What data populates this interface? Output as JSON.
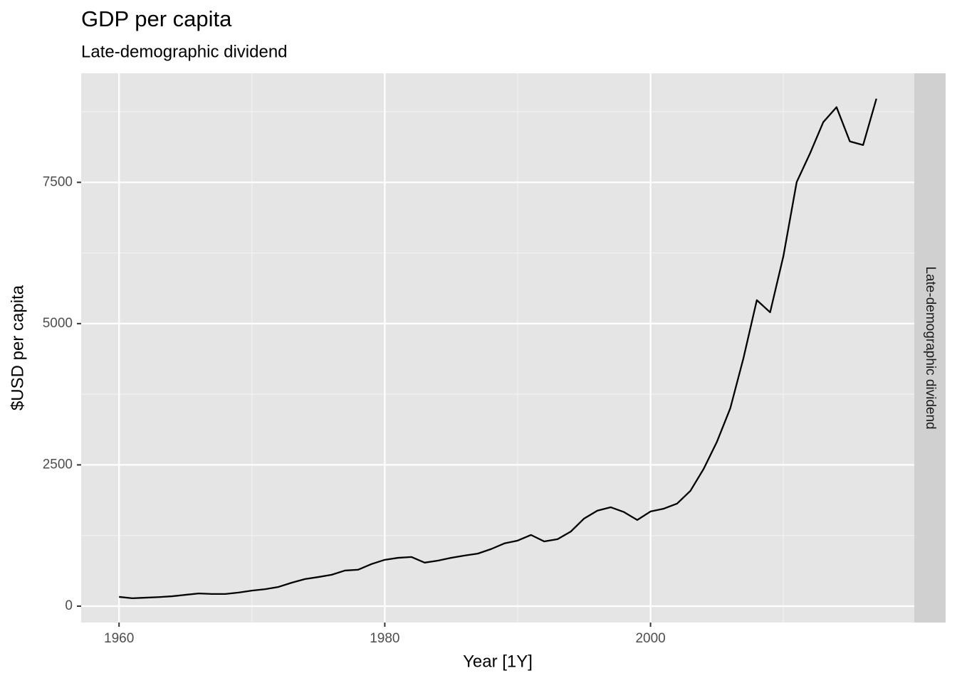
{
  "chart_data": {
    "type": "line",
    "title": "GDP per capita",
    "subtitle": "Late-demographic dividend",
    "facet": "Late-demographic dividend",
    "x_label": "Year [1Y]",
    "y_label": "$USD per capita",
    "x": [
      1960,
      1961,
      1962,
      1963,
      1964,
      1965,
      1966,
      1967,
      1968,
      1969,
      1970,
      1971,
      1972,
      1973,
      1974,
      1975,
      1976,
      1977,
      1978,
      1979,
      1980,
      1981,
      1982,
      1983,
      1984,
      1985,
      1986,
      1987,
      1988,
      1989,
      1990,
      1991,
      1992,
      1993,
      1994,
      1995,
      1996,
      1997,
      1998,
      1999,
      2000,
      2001,
      2002,
      2003,
      2004,
      2005,
      2006,
      2007,
      2008,
      2009,
      2010,
      2011,
      2012,
      2013,
      2014,
      2015,
      2016,
      2017
    ],
    "series": [
      {
        "color": "#000000",
        "values": [
          164,
          140,
          150,
          160,
          175,
          200,
          225,
          215,
          215,
          240,
          275,
          300,
          340,
          415,
          480,
          515,
          555,
          630,
          645,
          745,
          820,
          855,
          870,
          770,
          805,
          855,
          895,
          930,
          1010,
          1110,
          1160,
          1260,
          1145,
          1185,
          1320,
          1550,
          1690,
          1750,
          1665,
          1525,
          1675,
          1725,
          1815,
          2040,
          2430,
          2910,
          3500,
          4395,
          5415,
          5200,
          6195,
          7505,
          8010,
          8565,
          8830,
          8225,
          8160,
          8980
        ]
      }
    ],
    "xlim": [
      1957.15,
      2019.85
    ],
    "ylim": [
      -290,
      9430
    ],
    "xticks": [
      1960,
      1980,
      2000
    ],
    "yticks": [
      0,
      2500,
      5000,
      7500
    ],
    "grid": true
  }
}
